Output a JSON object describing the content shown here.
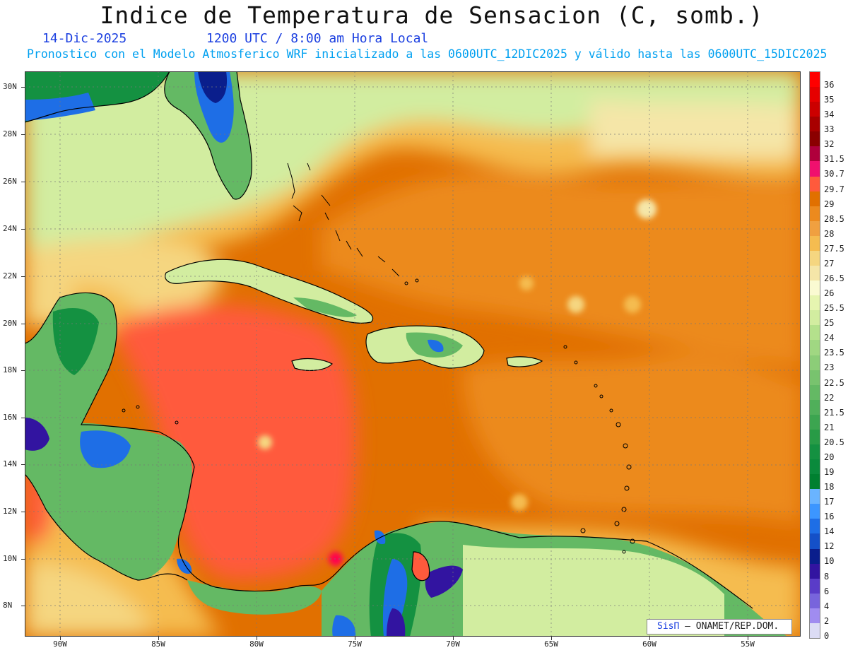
{
  "header": {
    "title": "Indice de Temperatura de Sensacion (C, somb.)",
    "date": "14-Dic-2025",
    "time": "1200 UTC / 8:00 am Hora Local",
    "subtitle": "Pronostico con el Modelo Atmosferico WRF inicializado a las 0600UTC_12DIC2025 y válido hasta las  0600UTC_15DIC2025"
  },
  "axes": {
    "lat_labels": [
      "30N",
      "28N",
      "26N",
      "24N",
      "22N",
      "20N",
      "18N",
      "16N",
      "14N",
      "12N",
      "10N",
      "8N"
    ],
    "lon_labels": [
      "90W",
      "85W",
      "80W",
      "75W",
      "70W",
      "65W",
      "60W",
      "55W"
    ]
  },
  "legend": {
    "levels": [
      "36",
      "35",
      "34",
      "33",
      "32",
      "31.5",
      "30.7",
      "29.7",
      "29",
      "28.5",
      "28",
      "27.5",
      "27",
      "26.5",
      "26",
      "25.5",
      "25",
      "24",
      "23.5",
      "23",
      "22.5",
      "22",
      "21.5",
      "21",
      "20.5",
      "20",
      "19",
      "18",
      "17",
      "16",
      "14",
      "12",
      "10",
      "8",
      "6",
      "4",
      "2",
      "0"
    ],
    "colors": [
      "#ff0000",
      "#e60000",
      "#cc0000",
      "#a80000",
      "#8b0000",
      "#b0003c",
      "#f0106e",
      "#ff5a3c",
      "#e17000",
      "#ec8a1e",
      "#f0a040",
      "#f5bc50",
      "#f5d680",
      "#f5e6a8",
      "#fafad2",
      "#e6f5b0",
      "#d2eda0",
      "#b4e18c",
      "#a0d782",
      "#8ccd78",
      "#78c36e",
      "#64b964",
      "#50af5a",
      "#3ca550",
      "#289b46",
      "#149141",
      "#0a8a3c",
      "#008030",
      "#6ab4ff",
      "#3c96ff",
      "#1e6ee6",
      "#1450c8",
      "#0a1e8c",
      "#3214a0",
      "#5a3cc8",
      "#7864dc",
      "#a08cf0",
      "#dcdcf5"
    ]
  },
  "credit": {
    "brand": "SisΠ",
    "text": " – ONAMET/REP.DOM."
  },
  "map_colors": {
    "ocean_hot": "#e17000",
    "ocean_hotter": "#ff5a3c",
    "ocean_warm": "#ec8a1e",
    "ocean_mild": "#f5bc50",
    "ocean_pale": "#f5d680",
    "cool_green": "#d2eda0",
    "land_green": "#64b964",
    "land_dark": "#149141",
    "land_cold": "#1e6ee6",
    "land_coldest": "#0a1e8c",
    "coast": "#000000"
  }
}
